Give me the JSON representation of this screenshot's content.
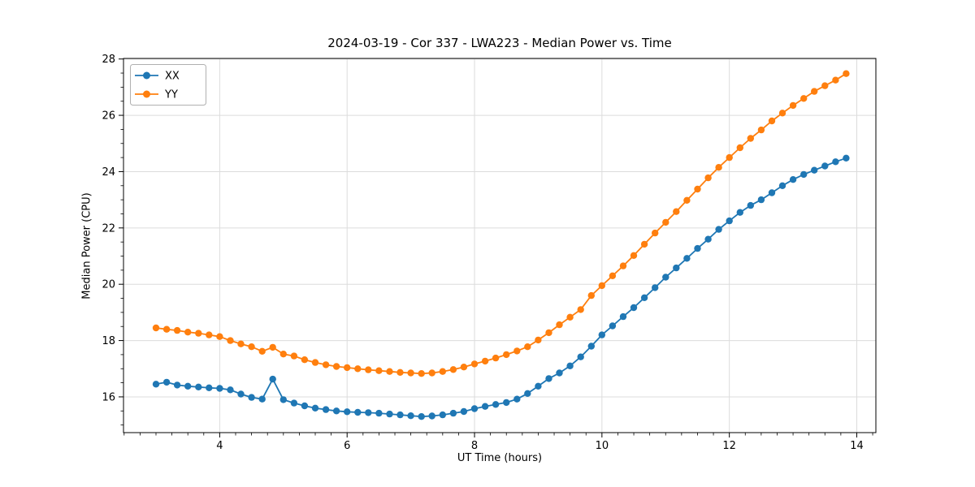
{
  "chart_data": {
    "type": "line",
    "title": "2024-03-19 - Cor 337 - LWA223 - Median Power vs. Time",
    "xlabel": "UT Time (hours)",
    "ylabel": "Median Power (CPU)",
    "xlim": [
      2.49,
      14.3
    ],
    "ylim": [
      14.73,
      28.02
    ],
    "x_major_ticks": [
      4,
      6,
      8,
      10,
      12,
      14
    ],
    "y_major_ticks": [
      16,
      18,
      20,
      22,
      24,
      26,
      28
    ],
    "x_minor_step": 0.25,
    "y_minor_step": 0.5,
    "grid": "major",
    "legend_position": "upper left",
    "background_color": "#ffffff",
    "grid_color": "#dcdcdc",
    "text_color": "#000000",
    "x": [
      3.0,
      3.167,
      3.333,
      3.5,
      3.667,
      3.833,
      4.0,
      4.167,
      4.333,
      4.5,
      4.667,
      4.833,
      5.0,
      5.167,
      5.333,
      5.5,
      5.667,
      5.833,
      6.0,
      6.167,
      6.333,
      6.5,
      6.667,
      6.833,
      7.0,
      7.167,
      7.333,
      7.5,
      7.667,
      7.833,
      8.0,
      8.167,
      8.333,
      8.5,
      8.667,
      8.833,
      9.0,
      9.167,
      9.333,
      9.5,
      9.667,
      9.833,
      10.0,
      10.167,
      10.333,
      10.5,
      10.667,
      10.833,
      11.0,
      11.167,
      11.333,
      11.5,
      11.667,
      11.833,
      12.0,
      12.167,
      12.333,
      12.5,
      12.667,
      12.833,
      13.0,
      13.167,
      13.333,
      13.5,
      13.667,
      13.833
    ],
    "series": [
      {
        "name": "XX",
        "color": "#1f77b4",
        "marker": "circle",
        "values": [
          16.45,
          16.52,
          16.42,
          16.38,
          16.35,
          16.32,
          16.3,
          16.25,
          16.1,
          15.98,
          15.92,
          16.63,
          15.9,
          15.78,
          15.68,
          15.6,
          15.55,
          15.5,
          15.47,
          15.45,
          15.44,
          15.42,
          15.39,
          15.36,
          15.33,
          15.3,
          15.32,
          15.36,
          15.42,
          15.48,
          15.58,
          15.66,
          15.73,
          15.8,
          15.92,
          16.12,
          16.38,
          16.65,
          16.85,
          17.1,
          17.42,
          17.8,
          18.2,
          18.52,
          18.85,
          19.17,
          19.52,
          19.88,
          20.25,
          20.58,
          20.92,
          21.27,
          21.6,
          21.95,
          22.25,
          22.55,
          22.8,
          23.0,
          23.25,
          23.5,
          23.72,
          23.9,
          24.05,
          24.2,
          24.35,
          24.48
        ]
      },
      {
        "name": "YY",
        "color": "#ff7f0e",
        "marker": "circle",
        "values": [
          18.45,
          18.4,
          18.36,
          18.3,
          18.26,
          18.2,
          18.14,
          18.0,
          17.88,
          17.78,
          17.62,
          17.76,
          17.52,
          17.45,
          17.32,
          17.22,
          17.14,
          17.08,
          17.04,
          17.0,
          16.96,
          16.93,
          16.9,
          16.87,
          16.85,
          16.83,
          16.85,
          16.9,
          16.97,
          17.06,
          17.17,
          17.27,
          17.38,
          17.5,
          17.63,
          17.78,
          18.02,
          18.28,
          18.56,
          18.83,
          19.1,
          19.6,
          19.95,
          20.3,
          20.65,
          21.02,
          21.42,
          21.82,
          22.2,
          22.58,
          22.98,
          23.38,
          23.78,
          24.15,
          24.5,
          24.85,
          25.18,
          25.48,
          25.8,
          26.08,
          26.35,
          26.6,
          26.85,
          27.05,
          27.25,
          27.48
        ]
      }
    ]
  }
}
